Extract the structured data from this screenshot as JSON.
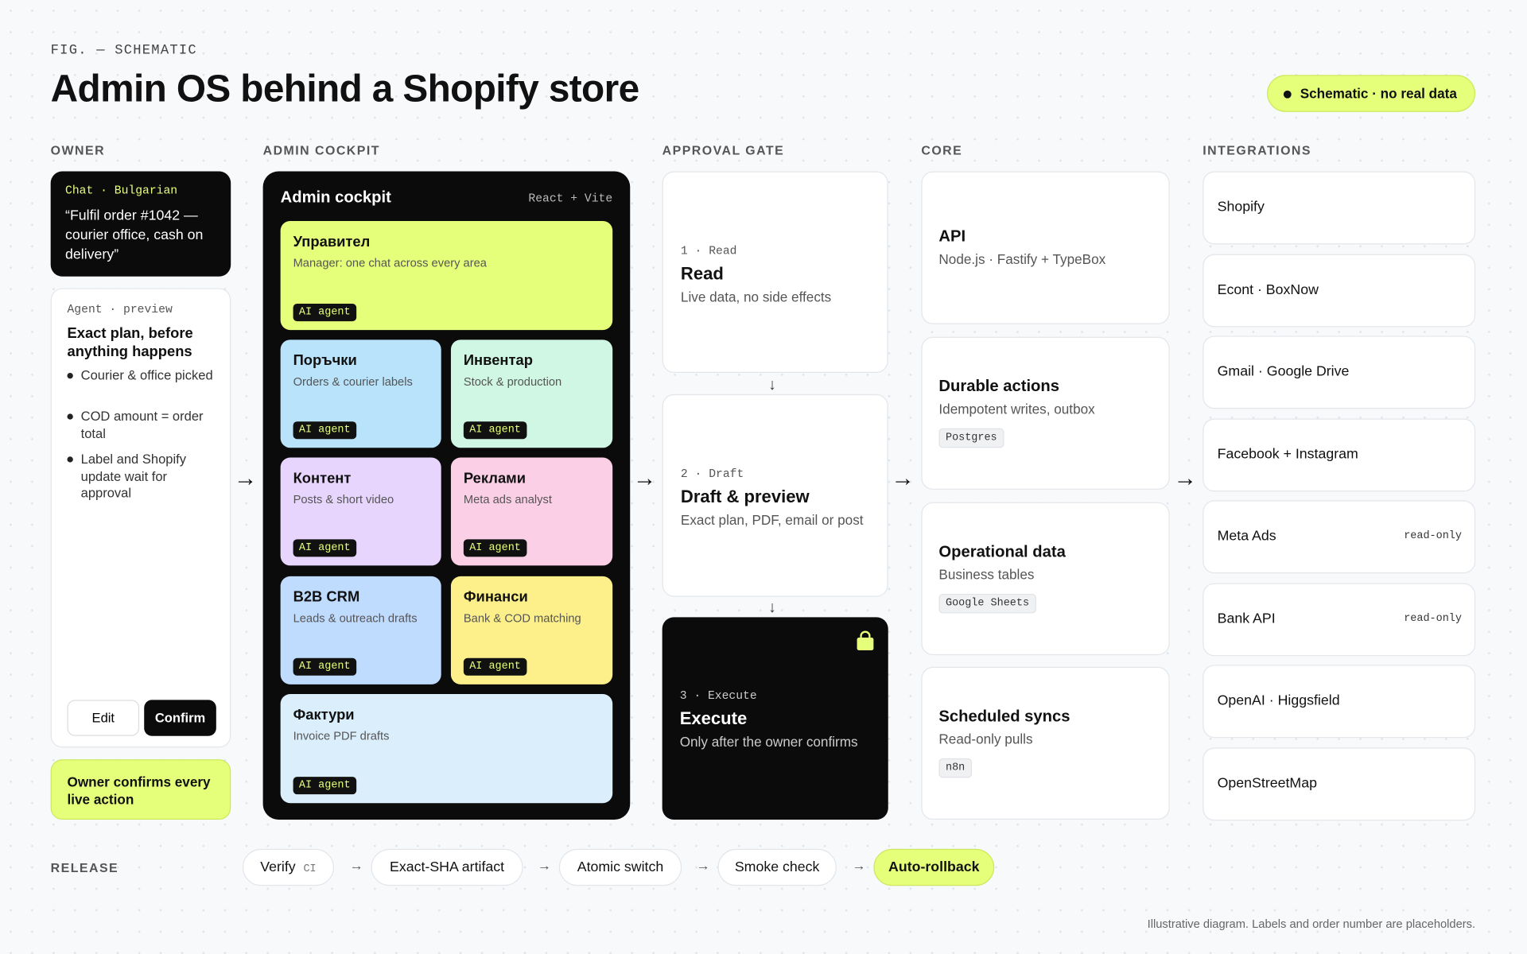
{
  "header": {
    "kicker": "FIG. — SCHEMATIC",
    "title": "Admin OS behind a Shopify store",
    "badge": "Schematic · no real data"
  },
  "columns": {
    "owner": "OWNER",
    "cockpit": "ADMIN COCKPIT",
    "gate": "APPROVAL GATE",
    "core": "CORE",
    "integrations": "INTEGRATIONS"
  },
  "owner": {
    "chat": {
      "label": "Chat · Bulgarian",
      "text": "“Fulfil order #1042 — courier office, cash on delivery”"
    },
    "preview": {
      "label": "Agent · preview",
      "title": "Exact plan, before anything happens",
      "items": [
        "Courier & office picked",
        "COD amount = order total",
        "Label and Shopify update wait for approval"
      ],
      "buttons": [
        "Edit",
        "Confirm"
      ]
    },
    "note": "Owner confirms every live action"
  },
  "cockpit": {
    "title": "Admin cockpit",
    "stack": "React + Vite",
    "tiles": [
      {
        "title": "Управител",
        "subtitle": "Manager: one chat across every area",
        "tag": "AI agent"
      },
      {
        "title": "Поръчки",
        "subtitle": "Orders & courier labels",
        "tag": "AI agent"
      },
      {
        "title": "Инвентар",
        "subtitle": "Stock & production",
        "tag": "AI agent"
      },
      {
        "title": "Контент",
        "subtitle": "Posts & short video",
        "tag": "AI agent"
      },
      {
        "title": "Реклами",
        "subtitle": "Meta ads analyst",
        "tag": "AI agent"
      },
      {
        "title": "B2B CRM",
        "subtitle": "Leads & outreach drafts",
        "tag": "AI agent"
      },
      {
        "title": "Финанси",
        "subtitle": "Bank & COD matching",
        "tag": "AI agent"
      },
      {
        "title": "Фактури",
        "subtitle": "Invoice PDF drafts",
        "tag": "AI agent"
      }
    ]
  },
  "gate": {
    "steps": [
      {
        "label": "1 · Read",
        "title": "Read",
        "text": "Live data, no side effects"
      },
      {
        "label": "2 · Draft",
        "title": "Draft & preview",
        "text": "Exact plan, PDF, email or post"
      },
      {
        "label": "3 · Execute",
        "title": "Execute",
        "text": "Only after the owner confirms"
      }
    ]
  },
  "core": {
    "boxes": [
      {
        "title": "API",
        "text": "Node.js · Fastify + TypeBox"
      },
      {
        "title": "Durable actions",
        "text": "Idempotent writes, outbox",
        "tag": "Postgres"
      },
      {
        "title": "Operational data",
        "text": "Business tables",
        "tag": "Google Sheets"
      },
      {
        "title": "Scheduled syncs",
        "text": "Read-only pulls",
        "tag": "n8n"
      }
    ]
  },
  "integrations": {
    "items": [
      {
        "name": "Shopify"
      },
      {
        "name": "Econt · BoxNow"
      },
      {
        "name": "Gmail · Google Drive"
      },
      {
        "name": "Facebook + Instagram"
      },
      {
        "name": "Meta Ads",
        "note": "read-only"
      },
      {
        "name": "Bank API",
        "note": "read-only"
      },
      {
        "name": "OpenAI · Higgsfield"
      },
      {
        "name": "OpenStreetMap"
      }
    ]
  },
  "release": {
    "label": "RELEASE",
    "steps": [
      {
        "name": "Verify",
        "tag": "CI"
      },
      {
        "name": "Exact-SHA artifact"
      },
      {
        "name": "Atomic switch"
      },
      {
        "name": "Smoke check"
      },
      {
        "name": "Auto-rollback"
      }
    ]
  },
  "footer": "Illustrative diagram. Labels and order number are placeholders."
}
